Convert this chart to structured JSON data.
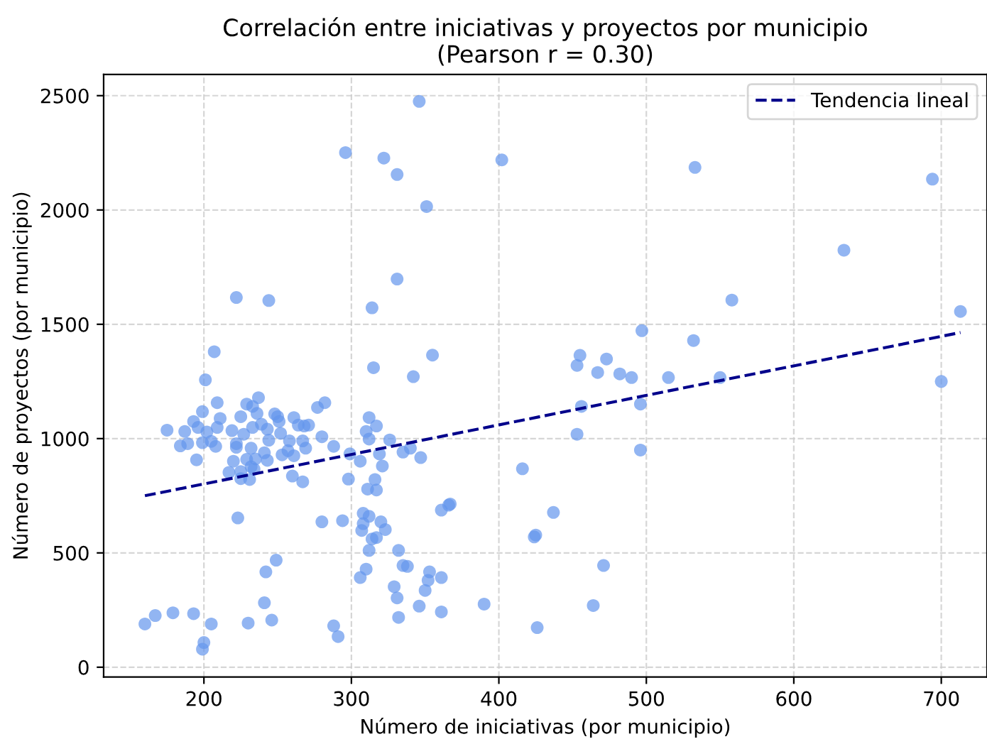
{
  "chart_data": {
    "type": "scatter",
    "title": "Correlación entre iniciativas y proyectos por municipio\n(Pearson r = 0.30)",
    "xlabel": "Número de iniciativas (por municipio)",
    "ylabel": "Número de proyectos (por municipio)",
    "xlim": [
      132,
      731
    ],
    "ylim": [
      -43,
      2593
    ],
    "xticks": [
      200,
      300,
      400,
      500,
      600,
      700
    ],
    "yticks": [
      0,
      500,
      1000,
      1500,
      2000,
      2500
    ],
    "grid": true,
    "legend": "top right",
    "series": [
      {
        "color": "#6495ed",
        "marker": "circle",
        "x": [
          346,
          331,
          402,
          351,
          331,
          533,
          694,
          634,
          558,
          713,
          296,
          322,
          222,
          244,
          497,
          532,
          455,
          453,
          473,
          467,
          482,
          490,
          515,
          550,
          700,
          456,
          496,
          453,
          496,
          471,
          464,
          355,
          342,
          326,
          335,
          340,
          347,
          321,
          416,
          361,
          367,
          437,
          424,
          223,
          280,
          294,
          308,
          312,
          320,
          323,
          307,
          308,
          314,
          317,
          312,
          332,
          335,
          338,
          310,
          306,
          329,
          331,
          332,
          346,
          350,
          352,
          353,
          361,
          361,
          390,
          366,
          425,
          426,
          249,
          242,
          241,
          246,
          230,
          205,
          200,
          199,
          193,
          179,
          167,
          160,
          288,
          291,
          314,
          207,
          315,
          201,
          237,
          209,
          229,
          233,
          282,
          277,
          199,
          236,
          211,
          225,
          248,
          250,
          261,
          193,
          312,
          239,
          251,
          264,
          268,
          271,
          317,
          175,
          187,
          196,
          202,
          209,
          219,
          227,
          233,
          243,
          252,
          310,
          280,
          184,
          189,
          199,
          205,
          208,
          222,
          222,
          232,
          244,
          258,
          267,
          257,
          253,
          261,
          269,
          288,
          312,
          195,
          220,
          229,
          235,
          241,
          243,
          232,
          217,
          225,
          234,
          225,
          231,
          260,
          267,
          298,
          306,
          319,
          316,
          311,
          317,
          299
        ],
        "values": [
          2475,
          2155,
          2219,
          2015,
          1698,
          2186,
          2135,
          1824,
          1606,
          1556,
          2251,
          2227,
          1617,
          1604,
          1472,
          1429,
          1364,
          1320,
          1348,
          1289,
          1283,
          1267,
          1267,
          1267,
          1250,
          1141,
          1151,
          1019,
          950,
          445,
          270,
          1365,
          1271,
          994,
          941,
          958,
          917,
          880,
          868,
          687,
          714,
          677,
          570,
          653,
          636,
          641,
          673,
          660,
          636,
          602,
          598,
          628,
          561,
          567,
          511,
          511,
          445,
          441,
          429,
          392,
          352,
          303,
          218,
          267,
          336,
          380,
          417,
          392,
          242,
          276,
          709,
          578,
          173,
          468,
          417,
          282,
          206,
          193,
          189,
          108,
          79,
          234,
          238,
          226,
          189,
          181,
          134,
          1572,
          1380,
          1310,
          1257,
          1179,
          1157,
          1151,
          1141,
          1157,
          1136,
          1118,
          1110,
          1088,
          1096,
          1108,
          1096,
          1092,
          1075,
          1092,
          1063,
          1075,
          1059,
          1055,
          1059,
          1055,
          1037,
          1031,
          1049,
          1029,
          1049,
          1035,
          1019,
          1049,
          1041,
          1023,
          1031,
          1008,
          968,
          978,
          982,
          988,
          966,
          962,
          978,
          958,
          993,
          990,
          990,
          947,
          929,
          925,
          958,
          966,
          998,
          907,
          901,
          909,
          911,
          938,
          905,
          877,
          852,
          856,
          866,
          825,
          821,
          836,
          811,
          823,
          901,
          933,
          821,
          779,
          775,
          933
        ]
      },
      {
        "type": "line",
        "name": "Tendencia lineal",
        "color": "#00008b",
        "line_style": "dashed",
        "marker": "none",
        "x": [
          160,
          713
        ],
        "values": [
          750,
          1464
        ]
      }
    ]
  }
}
